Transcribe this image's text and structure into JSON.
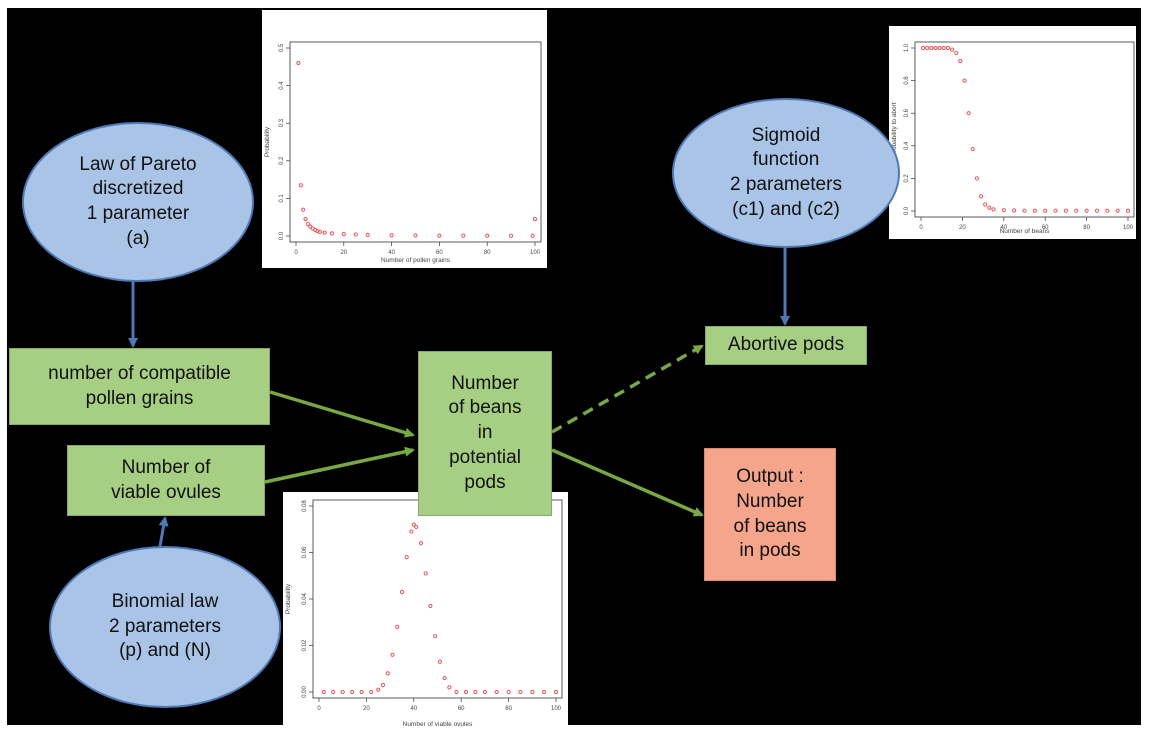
{
  "ellipses": {
    "pareto": "Law of Pareto\ndiscretized\n1 parameter\n(a)",
    "sigmoid": "Sigmoid\nfunction\n2 parameters\n(c1) and (c2)",
    "binomial": "Binomial law\n2 parameters\n(p) and (N)"
  },
  "boxes": {
    "pollen": "number of compatible\npollen grains",
    "ovules": "Number of\nviable ovules",
    "potential": "Number\nof beans\nin\npotential\npods",
    "abortive": "Abortive pods",
    "output": "Output :\nNumber\nof beans\nin pods"
  },
  "colors": {
    "ellipse_fill": "#a9c4e6",
    "box_fill": "#a7cf83",
    "output_fill": "#f4a58b",
    "arrow_green": "#78a843",
    "arrow_blue": "#4f79b5",
    "point_red": "#e8565b"
  },
  "chart_data": [
    {
      "id": "pareto-plot",
      "type": "scatter",
      "xlabel": "Number of pollen grains",
      "ylabel": "Probability",
      "xlim": [
        0,
        100
      ],
      "ylim": [
        0,
        0.5
      ],
      "xticks": [
        "0",
        "20",
        "40",
        "60",
        "80",
        "100"
      ],
      "yticks": [
        "0.0",
        "0.1",
        "0.2",
        "0.3",
        "0.4",
        "0.5"
      ],
      "points": [
        [
          1,
          0.46
        ],
        [
          2,
          0.135
        ],
        [
          3,
          0.07
        ],
        [
          4,
          0.045
        ],
        [
          5,
          0.032
        ],
        [
          6,
          0.025
        ],
        [
          7,
          0.02
        ],
        [
          8,
          0.016
        ],
        [
          9,
          0.013
        ],
        [
          10,
          0.011
        ],
        [
          12,
          0.009
        ],
        [
          15,
          0.007
        ],
        [
          20,
          0.005
        ],
        [
          25,
          0.004
        ],
        [
          30,
          0.003
        ],
        [
          40,
          0.002
        ],
        [
          50,
          0.0015
        ],
        [
          60,
          0.001
        ],
        [
          70,
          0.001
        ],
        [
          80,
          0.0008
        ],
        [
          90,
          0.0007
        ],
        [
          99,
          0.0006
        ],
        [
          100,
          0.045
        ]
      ],
      "grid": false
    },
    {
      "id": "sigmoid-plot",
      "type": "scatter",
      "xlabel": "Number of beans",
      "ylabel": "Probability to abort",
      "xlim": [
        0,
        100
      ],
      "ylim": [
        0,
        1
      ],
      "xticks": [
        "0",
        "20",
        "40",
        "60",
        "80",
        "100"
      ],
      "yticks": [
        "0.0",
        "0.2",
        "0.4",
        "0.6",
        "0.8",
        "1.0"
      ],
      "points": [
        [
          1,
          1.0
        ],
        [
          3,
          1.0
        ],
        [
          5,
          1.0
        ],
        [
          7,
          1.0
        ],
        [
          9,
          1.0
        ],
        [
          11,
          1.0
        ],
        [
          13,
          1.0
        ],
        [
          15,
          0.99
        ],
        [
          17,
          0.97
        ],
        [
          19,
          0.92
        ],
        [
          21,
          0.8
        ],
        [
          23,
          0.6
        ],
        [
          25,
          0.38
        ],
        [
          27,
          0.2
        ],
        [
          29,
          0.09
        ],
        [
          31,
          0.04
        ],
        [
          33,
          0.02
        ],
        [
          35,
          0.01
        ],
        [
          40,
          0.005
        ],
        [
          45,
          0.003
        ],
        [
          50,
          0.002
        ],
        [
          55,
          0.002
        ],
        [
          60,
          0.002
        ],
        [
          65,
          0.002
        ],
        [
          70,
          0.002
        ],
        [
          75,
          0.002
        ],
        [
          80,
          0.002
        ],
        [
          85,
          0.002
        ],
        [
          90,
          0.002
        ],
        [
          95,
          0.002
        ],
        [
          100,
          0.002
        ]
      ],
      "grid": false
    },
    {
      "id": "binomial-plot",
      "type": "scatter",
      "xlabel": "Number of viable ovules",
      "ylabel": "Probability",
      "xlim": [
        0,
        100
      ],
      "ylim": [
        0,
        0.08
      ],
      "xticks": [
        "0",
        "20",
        "40",
        "60",
        "80",
        "100"
      ],
      "yticks": [
        "0.00",
        "0.02",
        "0.04",
        "0.06",
        "0.08"
      ],
      "points": [
        [
          2,
          0.0
        ],
        [
          6,
          0.0
        ],
        [
          10,
          0.0
        ],
        [
          14,
          0.0
        ],
        [
          18,
          0.0
        ],
        [
          22,
          0.0
        ],
        [
          25,
          0.001
        ],
        [
          27,
          0.003
        ],
        [
          29,
          0.008
        ],
        [
          31,
          0.016
        ],
        [
          33,
          0.028
        ],
        [
          35,
          0.043
        ],
        [
          37,
          0.058
        ],
        [
          39,
          0.069
        ],
        [
          40,
          0.072
        ],
        [
          41,
          0.071
        ],
        [
          43,
          0.064
        ],
        [
          45,
          0.051
        ],
        [
          47,
          0.037
        ],
        [
          49,
          0.024
        ],
        [
          51,
          0.013
        ],
        [
          53,
          0.006
        ],
        [
          55,
          0.002
        ],
        [
          58,
          0.0
        ],
        [
          62,
          0.0
        ],
        [
          66,
          0.0
        ],
        [
          70,
          0.0
        ],
        [
          75,
          0.0
        ],
        [
          80,
          0.0
        ],
        [
          85,
          0.0
        ],
        [
          90,
          0.0
        ],
        [
          95,
          0.0
        ],
        [
          100,
          0.0
        ]
      ],
      "grid": false
    }
  ]
}
